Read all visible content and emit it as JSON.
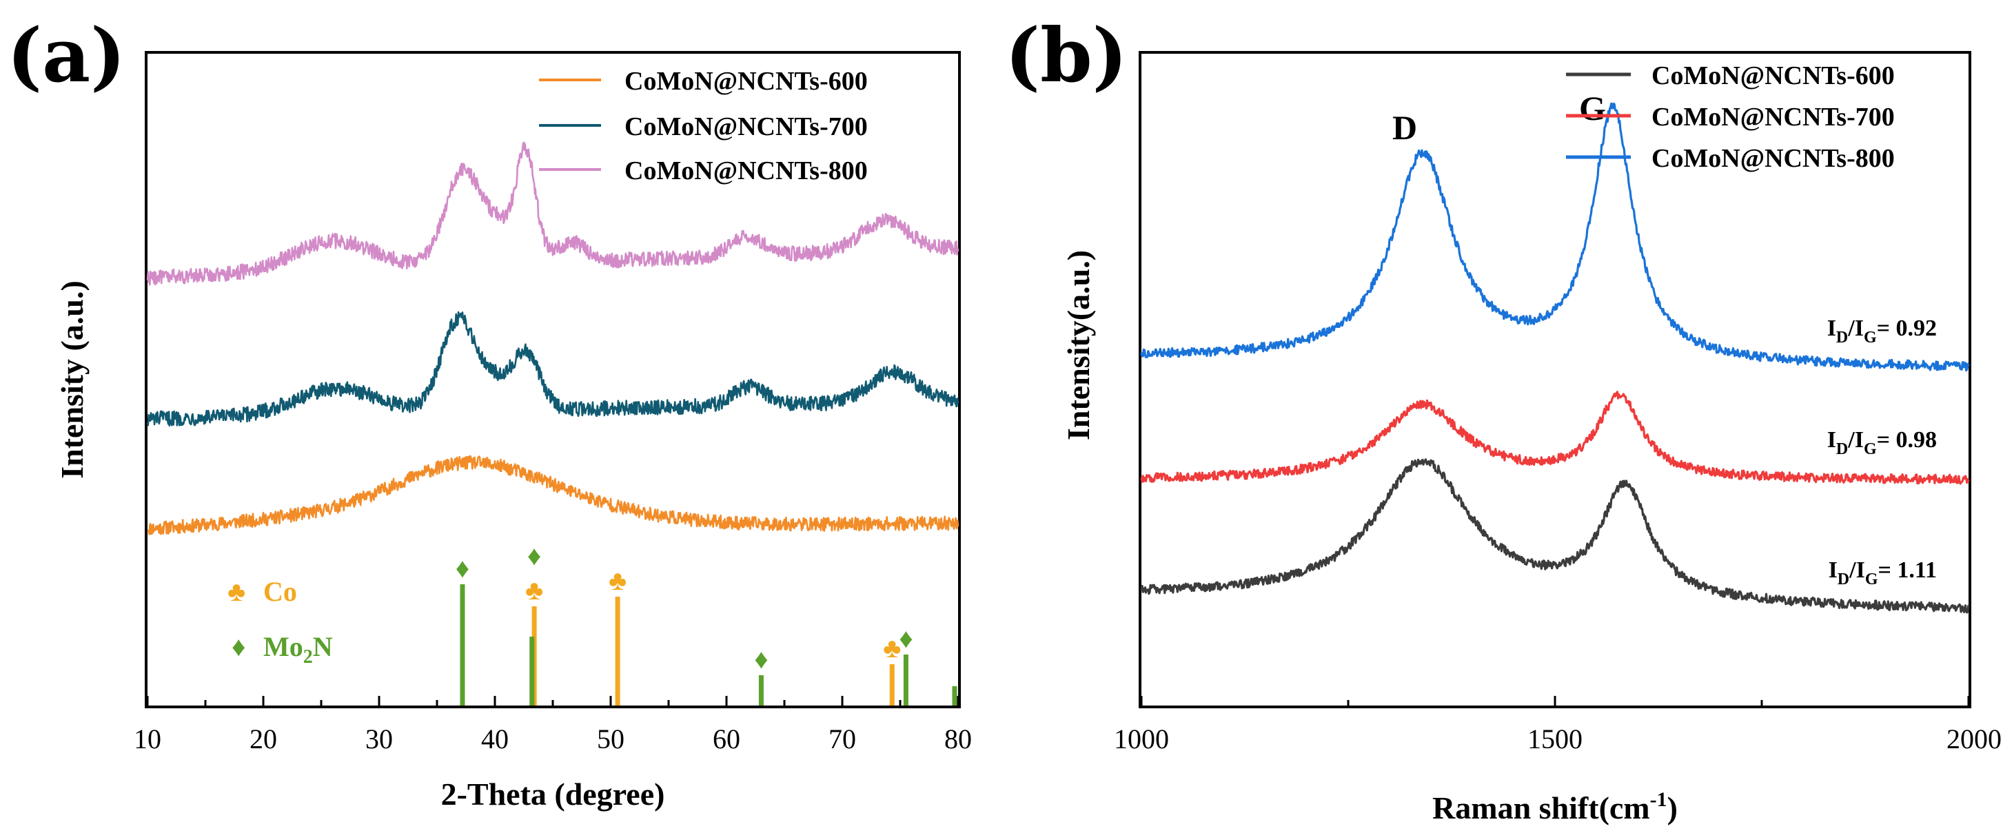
{
  "figure": {
    "background": "#ffffff"
  },
  "chart_data": [
    {
      "panel": "(a)",
      "type": "line",
      "title": "",
      "xlabel": "2-Theta (degree)",
      "ylabel": "Intensity (a.u.)",
      "xlim": [
        10,
        80
      ],
      "xticks": [
        "10",
        "20",
        "30",
        "40",
        "50",
        "60",
        "70",
        "80"
      ],
      "yticks": [],
      "legend_position": "top-right",
      "series": [
        {
          "name": "CoMoN@NCNTs-600",
          "color": "#f28c28",
          "offset": 0,
          "noise": 0.018,
          "peaks": [
            {
              "x": 37.0,
              "height": 0.11,
              "width": 6.0
            },
            {
              "x": 43.0,
              "height": 0.07,
              "width": 8.0
            },
            {
              "x": 25.0,
              "height": 0.03,
              "width": 8.0
            }
          ],
          "baseline_start": 0.0,
          "baseline_end": 0.02
        },
        {
          "name": "CoMoN@NCNTs-700",
          "color": "#115a72",
          "offset": 0.3,
          "noise": 0.02,
          "peaks": [
            {
              "x": 26.3,
              "height": 0.07,
              "width": 3.5
            },
            {
              "x": 36.7,
              "height": 0.2,
              "width": 1.4
            },
            {
              "x": 39.5,
              "height": 0.09,
              "width": 2.5
            },
            {
              "x": 42.8,
              "height": 0.12,
              "width": 1.1
            },
            {
              "x": 62.0,
              "height": 0.05,
              "width": 1.4
            },
            {
              "x": 74.4,
              "height": 0.08,
              "width": 2.0
            }
          ],
          "baseline_start": 0.0,
          "baseline_end": 0.05
        },
        {
          "name": "CoMoN@NCNTs-800",
          "color": "#d38bc8",
          "offset": 0.68,
          "noise": 0.02,
          "peaks": [
            {
              "x": 26.0,
              "height": 0.08,
              "width": 3.5
            },
            {
              "x": 37.0,
              "height": 0.19,
              "width": 1.4
            },
            {
              "x": 39.8,
              "height": 0.12,
              "width": 2.5
            },
            {
              "x": 42.7,
              "height": 0.25,
              "width": 0.8
            },
            {
              "x": 46.7,
              "height": 0.05,
              "width": 1.2
            },
            {
              "x": 61.8,
              "height": 0.05,
              "width": 1.4
            },
            {
              "x": 73.6,
              "height": 0.08,
              "width": 2.0
            }
          ],
          "baseline_start": 0.0,
          "baseline_end": 0.08
        }
      ],
      "reference_peaks": [
        {
          "phase": "Co",
          "x": 43.4,
          "height": 0.72,
          "color": "#f2a81f"
        },
        {
          "phase": "Co",
          "x": 50.6,
          "height": 0.79,
          "color": "#f2a81f"
        },
        {
          "phase": "Co",
          "x": 74.3,
          "height": 0.3,
          "color": "#f2a81f"
        },
        {
          "phase": "Mo2N",
          "x": 37.2,
          "height": 0.88,
          "color": "#5aa02c"
        },
        {
          "phase": "Mo2N",
          "x": 43.2,
          "height": 0.5,
          "color": "#5aa02c"
        },
        {
          "phase": "Mo2N",
          "x": 63.0,
          "height": 0.22,
          "color": "#5aa02c"
        },
        {
          "phase": "Mo2N",
          "x": 75.5,
          "height": 0.37,
          "color": "#5aa02c"
        },
        {
          "phase": "Mo2N",
          "x": 79.7,
          "height": 0.14,
          "color": "#5aa02c"
        }
      ],
      "reference_markers": [
        {
          "symbol": "♦",
          "x": 37.2,
          "color": "#5aa02c"
        },
        {
          "symbol": "♦",
          "x": 43.4,
          "color": "#5aa02c"
        },
        {
          "symbol": "♣",
          "x": 43.4,
          "color": "#f2a81f"
        },
        {
          "symbol": "♣",
          "x": 50.6,
          "color": "#f2a81f"
        },
        {
          "symbol": "♦",
          "x": 63.0,
          "color": "#5aa02c"
        },
        {
          "symbol": "♣",
          "x": 74.3,
          "color": "#f2a81f"
        },
        {
          "symbol": "♦",
          "x": 75.5,
          "color": "#5aa02c"
        }
      ],
      "reference_legend": [
        {
          "symbol": "♣",
          "label": "Co",
          "color": "#f2a81f"
        },
        {
          "symbol": "♦",
          "label": "Mo",
          "sub": "2",
          "after": "N",
          "color": "#5aa02c"
        }
      ]
    },
    {
      "panel": "(b)",
      "type": "line",
      "title": "",
      "xlabel": "Raman shift(cm",
      "xlabel_sup": "-1",
      "xlabel_end": ")",
      "ylabel": "Intensity(a.u.)",
      "xlim": [
        1000,
        2000
      ],
      "xticks": [
        "1000",
        "1500",
        "2000"
      ],
      "yticks": [],
      "legend_position": "top-right",
      "peak_labels": [
        {
          "text": "D",
          "x": 1330
        },
        {
          "text": "G",
          "x": 1557
        }
      ],
      "series": [
        {
          "name": "CoMoN@NCNTs-600",
          "color": "#3c3c3c",
          "offset": 0,
          "noise": 0.012,
          "peaks": [
            {
              "x": 1340,
              "height": 0.37,
              "width": 70
            },
            {
              "x": 1585,
              "height": 0.3,
              "width": 35
            }
          ],
          "baseline_start": 0.04,
          "baseline_end": 0.0,
          "ratio_prefix": "I",
          "ratio_sub1": "D",
          "ratio_mid": "/I",
          "ratio_sub2": "G",
          "ratio_value": "= 1.11"
        },
        {
          "name": "CoMoN@NCNTs-700",
          "color": "#ef3b3b",
          "offset": 0.35,
          "noise": 0.012,
          "peaks": [
            {
              "x": 1340,
              "height": 0.2,
              "width": 60
            },
            {
              "x": 1578,
              "height": 0.22,
              "width": 32
            }
          ],
          "baseline_start": 0.0,
          "baseline_end": 0.0,
          "ratio_prefix": "I",
          "ratio_sub1": "D",
          "ratio_mid": "/I",
          "ratio_sub2": "G",
          "ratio_value": "= 0.98"
        },
        {
          "name": "CoMoN@NCNTs-800",
          "color": "#1a73d9",
          "offset": 0.68,
          "noise": 0.012,
          "peaks": [
            {
              "x": 1340,
              "height": 0.55,
              "width": 45
            },
            {
              "x": 1570,
              "height": 0.67,
              "width": 30
            }
          ],
          "baseline_start": 0.0,
          "baseline_end": -0.03,
          "ratio_prefix": "I",
          "ratio_sub1": "D",
          "ratio_mid": "/I",
          "ratio_sub2": "G",
          "ratio_value": "= 0.92"
        }
      ]
    }
  ]
}
